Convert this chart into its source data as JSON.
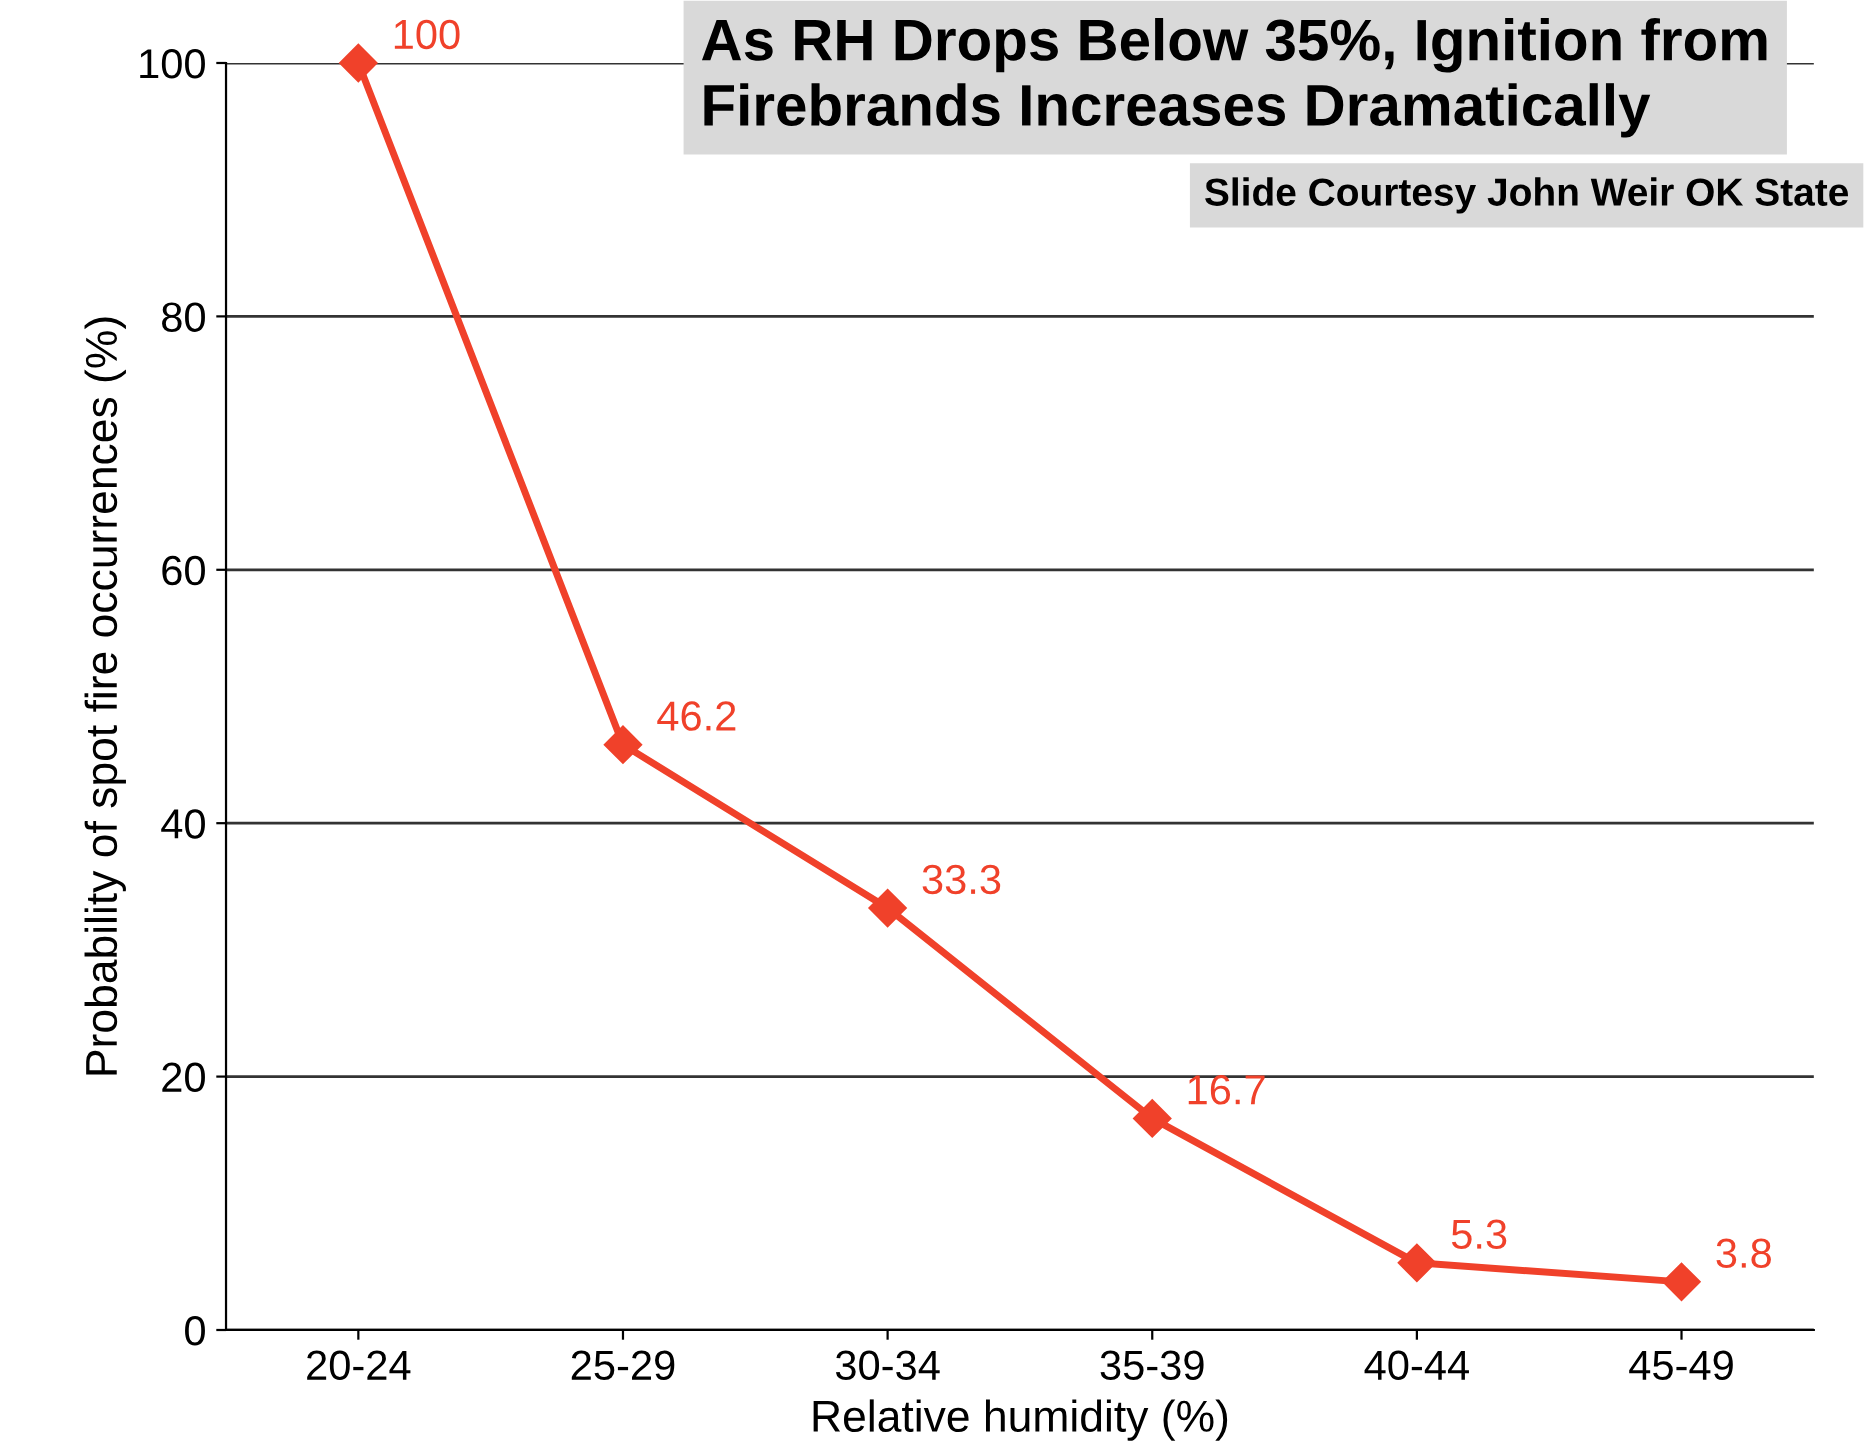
{
  "chart_data": {
    "type": "line",
    "title": "As RH Drops Below 35%, Ignition from\nFirebrands Increases Dramatically",
    "xlabel": "Relative humidity (%)",
    "ylabel": "Probability of spot fire occurrences (%)",
    "annotations": [
      "Slide Courtesy John Weir OK State"
    ],
    "categories": [
      "20-24",
      "25-29",
      "30-34",
      "35-39",
      "40-44",
      "45-49"
    ],
    "series": [
      {
        "color": "#f0412a",
        "values": [
          100,
          46.2,
          33.3,
          16.7,
          5.3,
          3.8
        ]
      }
    ],
    "ylim": [
      0,
      100
    ],
    "yticks": [
      0,
      20,
      40,
      60,
      80,
      100
    ],
    "grid": "y",
    "marker": "diamond",
    "line_style": "solid",
    "data_labels": true,
    "legend": false
  }
}
